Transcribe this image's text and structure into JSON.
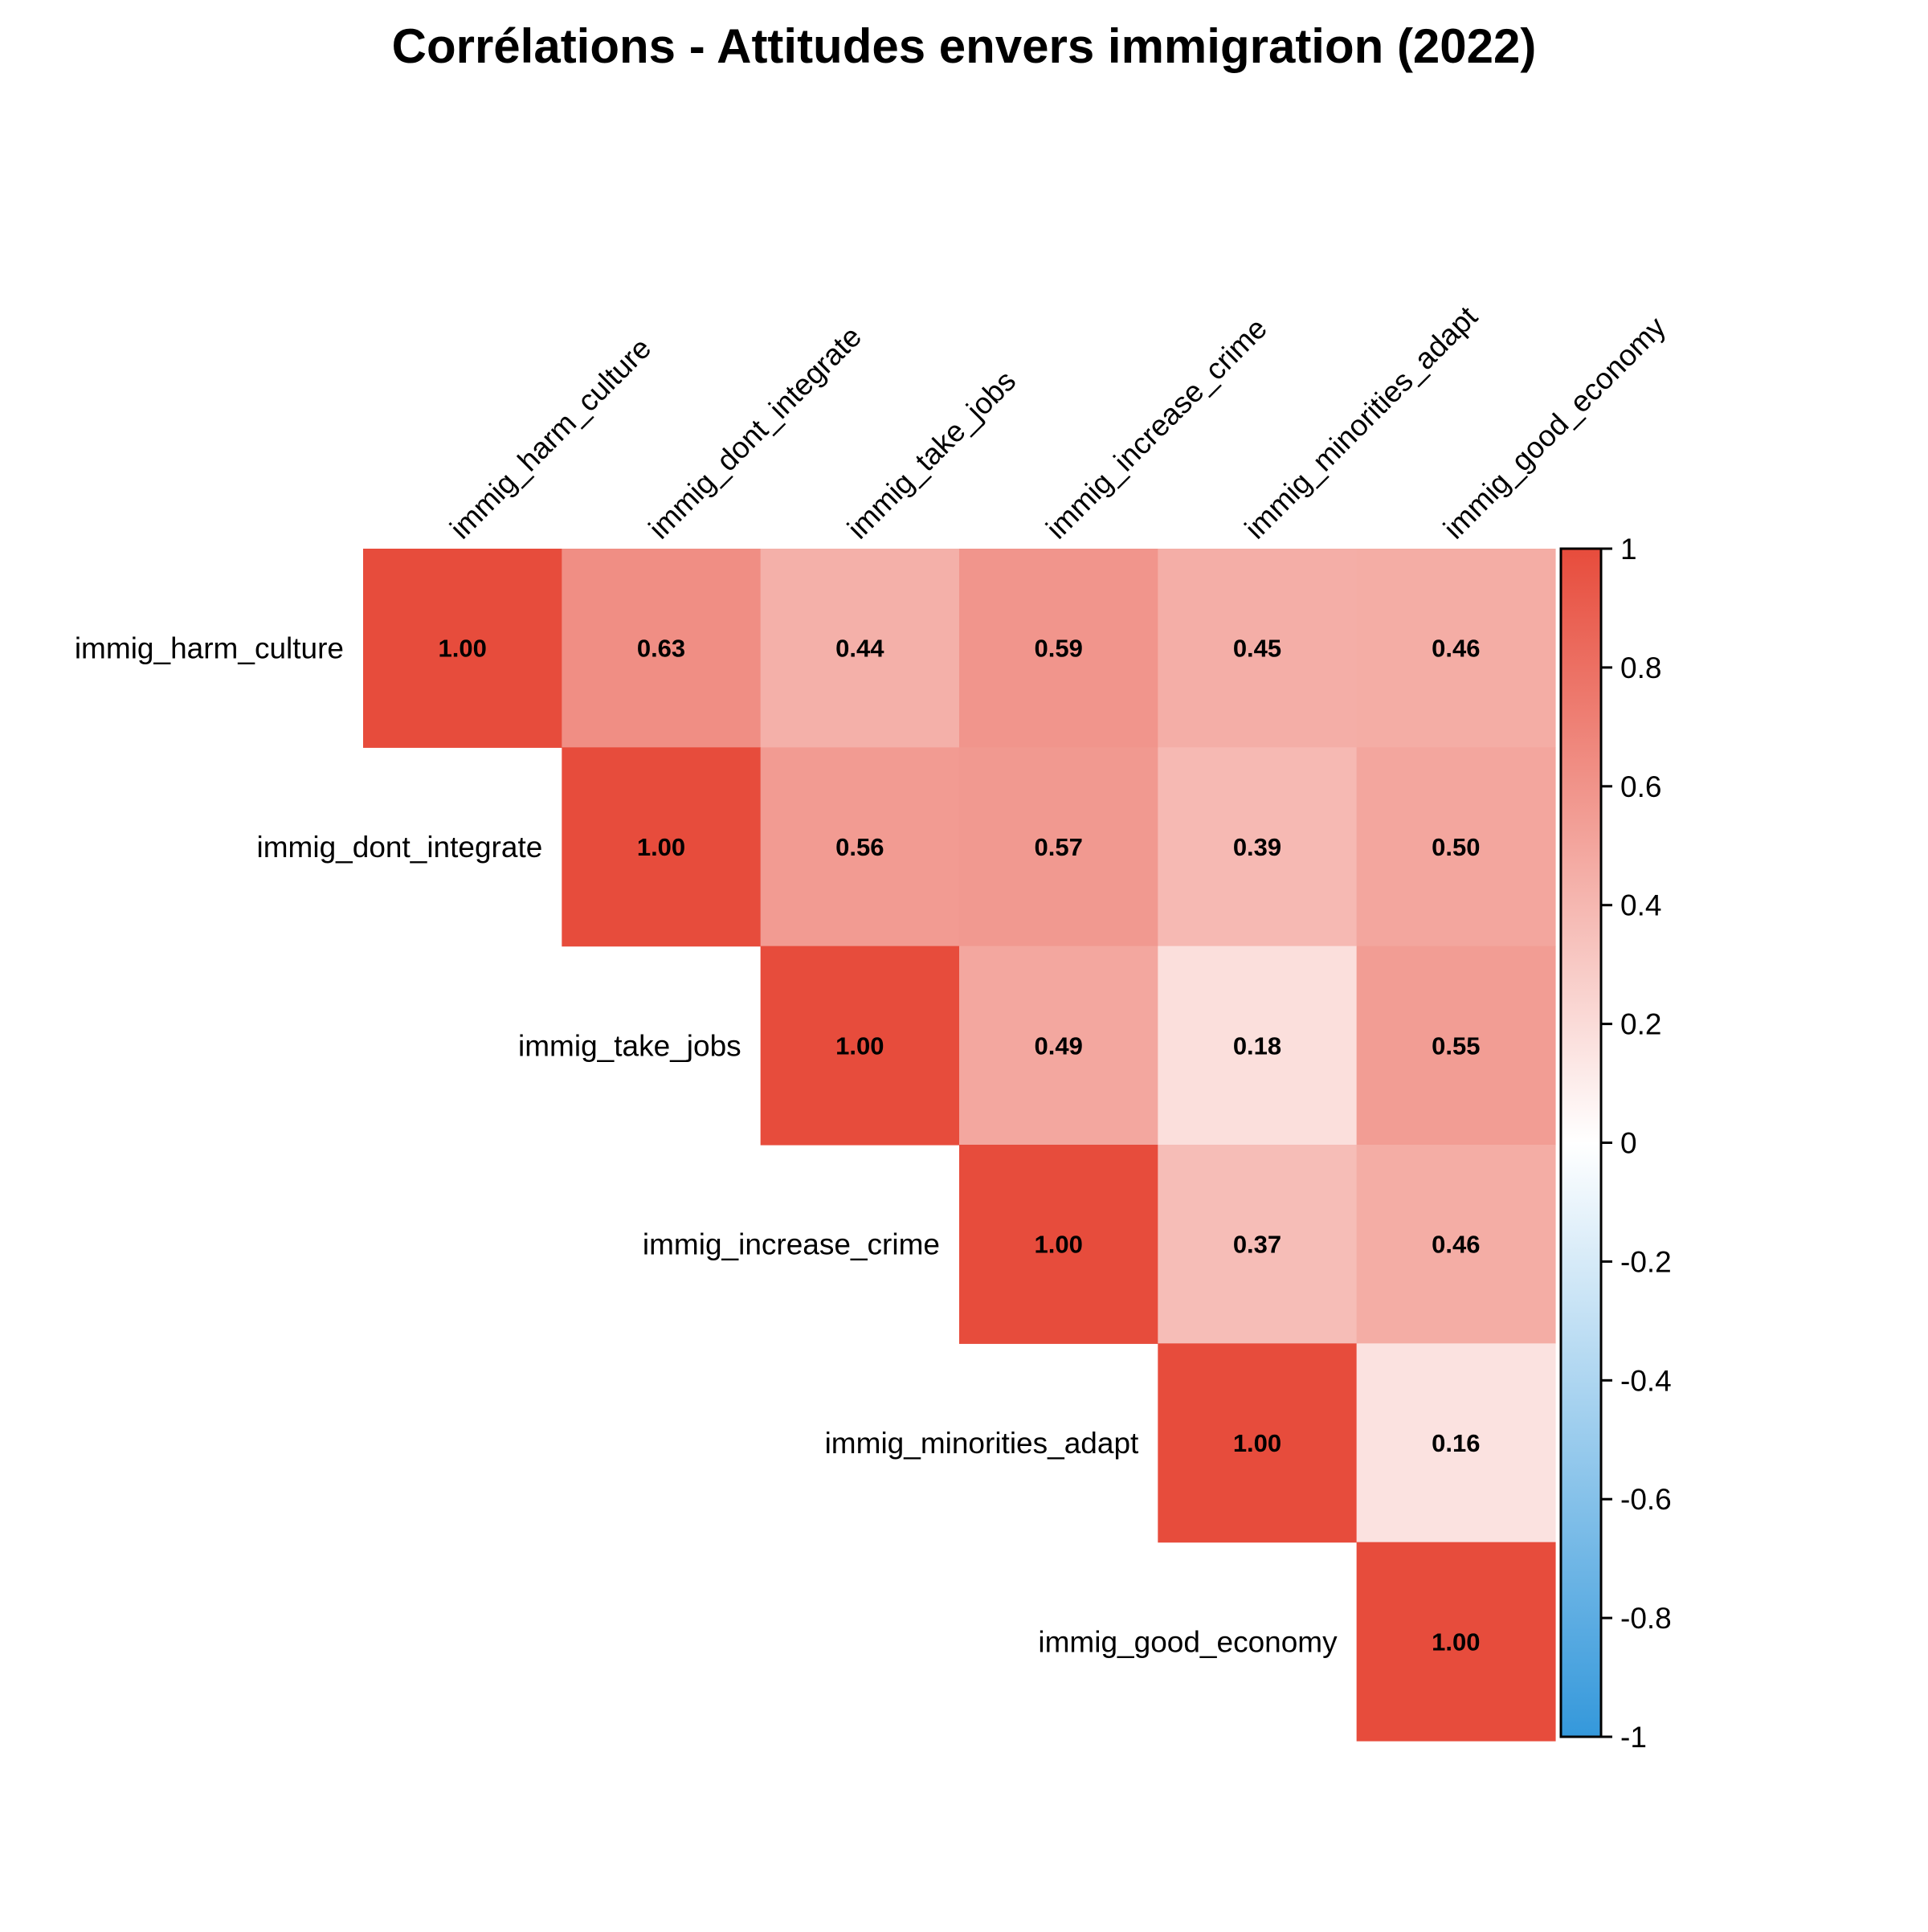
{
  "chart_data": {
    "type": "heatmap",
    "title": "Corrélations - Attitudes envers immigration (2022)",
    "variables": [
      "immig_harm_culture",
      "immig_dont_integrate",
      "immig_take_jobs",
      "immig_increase_crime",
      "immig_minorities_adapt",
      "immig_good_economy"
    ],
    "matrix": [
      [
        1.0,
        0.63,
        0.44,
        0.59,
        0.45,
        0.46
      ],
      [
        null,
        1.0,
        0.56,
        0.57,
        0.39,
        0.5
      ],
      [
        null,
        null,
        1.0,
        0.49,
        0.18,
        0.55
      ],
      [
        null,
        null,
        null,
        1.0,
        0.37,
        0.46
      ],
      [
        null,
        null,
        null,
        null,
        1.0,
        0.16
      ],
      [
        null,
        null,
        null,
        null,
        null,
        1.0
      ]
    ],
    "triangle": "upper",
    "value_format_decimals": 2,
    "colorbar": {
      "range": [
        -1,
        1
      ],
      "ticks": [
        1,
        0.8,
        0.6,
        0.4,
        0.2,
        0,
        -0.2,
        -0.4,
        -0.6,
        -0.8,
        -1
      ],
      "tick_labels": [
        "1",
        "0.8",
        "0.6",
        "0.4",
        "0.2",
        "0",
        "-0.2",
        "-0.4",
        "-0.6",
        "-0.8",
        "-1"
      ],
      "colors": {
        "negative": "#3498DB",
        "zero": "#FFFFFF",
        "positive": "#E74C3C"
      }
    },
    "legend_position": "right"
  }
}
